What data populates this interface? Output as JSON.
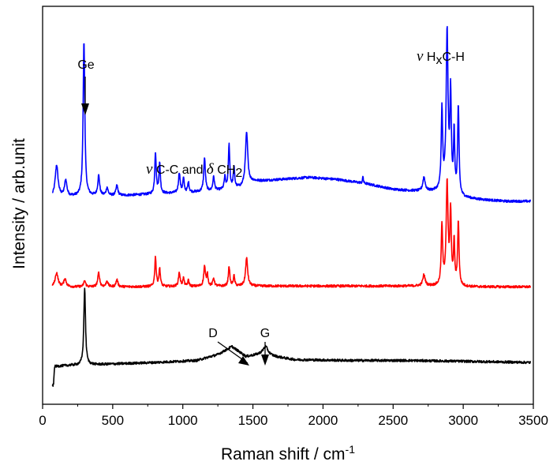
{
  "chart_data": {
    "type": "line",
    "xlabel": "Raman shift / cm",
    "xlabel_sup": "-1",
    "ylabel": "Intensity / arb.unit",
    "xlim": [
      0,
      3500
    ],
    "ylim": [
      0,
      10
    ],
    "x_ticks": [
      0,
      500,
      1000,
      1500,
      2000,
      2500,
      3000,
      3500
    ],
    "x_tick_labels": [
      "0",
      "500",
      "1000",
      "1500",
      "2000",
      "2500",
      "3000",
      "3500"
    ],
    "y_ticks_visible": false,
    "grid": false,
    "legend": "none",
    "series": [
      {
        "color": "#0000ff",
        "baseline_points": [
          [
            80,
            5.2
          ],
          [
            200,
            5.22
          ],
          [
            600,
            5.25
          ],
          [
            900,
            5.3
          ],
          [
            1200,
            5.35
          ],
          [
            1420,
            5.45
          ],
          [
            1500,
            5.6
          ],
          [
            1700,
            5.65
          ],
          [
            1900,
            5.7
          ],
          [
            2100,
            5.65
          ],
          [
            2300,
            5.55
          ],
          [
            2500,
            5.4
          ],
          [
            2700,
            5.35
          ],
          [
            2850,
            5.35
          ],
          [
            2980,
            5.2
          ],
          [
            3100,
            5.15
          ],
          [
            3300,
            5.1
          ],
          [
            3480,
            5.1
          ]
        ],
        "peaks": [
          [
            100,
            0.8,
            12
          ],
          [
            165,
            0.4,
            10
          ],
          [
            295,
            3.9,
            7
          ],
          [
            400,
            0.5,
            8
          ],
          [
            460,
            0.2,
            8
          ],
          [
            530,
            0.25,
            8
          ],
          [
            805,
            1.05,
            6
          ],
          [
            835,
            0.75,
            6
          ],
          [
            975,
            0.5,
            7
          ],
          [
            1005,
            0.35,
            6
          ],
          [
            1040,
            0.25,
            6
          ],
          [
            1155,
            0.85,
            7
          ],
          [
            1220,
            0.35,
            7
          ],
          [
            1300,
            0.3,
            6
          ],
          [
            1330,
            1.1,
            6
          ],
          [
            1365,
            0.5,
            6
          ],
          [
            1455,
            1.3,
            10
          ],
          [
            2285,
            0.18,
            3
          ],
          [
            2720,
            0.35,
            10
          ],
          [
            2848,
            2.0,
            6
          ],
          [
            2885,
            4.0,
            8
          ],
          [
            2910,
            2.4,
            6
          ],
          [
            2935,
            1.5,
            5
          ],
          [
            2965,
            2.2,
            6
          ]
        ],
        "start_x": 70
      },
      {
        "color": "#ff0000",
        "baseline_points": [
          [
            80,
            2.95
          ],
          [
            500,
            2.95
          ],
          [
            1500,
            2.97
          ],
          [
            2500,
            2.97
          ],
          [
            2850,
            2.97
          ],
          [
            3000,
            2.95
          ],
          [
            3480,
            2.95
          ]
        ],
        "peaks": [
          [
            100,
            0.35,
            12
          ],
          [
            160,
            0.2,
            10
          ],
          [
            300,
            0.15,
            8
          ],
          [
            400,
            0.35,
            8
          ],
          [
            460,
            0.15,
            8
          ],
          [
            530,
            0.18,
            8
          ],
          [
            805,
            0.75,
            6
          ],
          [
            835,
            0.45,
            6
          ],
          [
            975,
            0.35,
            7
          ],
          [
            1005,
            0.2,
            6
          ],
          [
            1040,
            0.15,
            6
          ],
          [
            1155,
            0.5,
            7
          ],
          [
            1175,
            0.3,
            6
          ],
          [
            1220,
            0.2,
            7
          ],
          [
            1330,
            0.5,
            6
          ],
          [
            1365,
            0.25,
            6
          ],
          [
            1455,
            0.7,
            9
          ],
          [
            2720,
            0.28,
            10
          ],
          [
            2848,
            1.5,
            6
          ],
          [
            2885,
            2.55,
            8
          ],
          [
            2910,
            1.8,
            6
          ],
          [
            2935,
            1.1,
            5
          ],
          [
            2965,
            1.6,
            6
          ]
        ],
        "start_x": 70
      },
      {
        "color": "#000000",
        "baseline_points": [
          [
            70,
            0.45
          ],
          [
            78,
            0.5
          ],
          [
            85,
            0.95
          ],
          [
            200,
            0.98
          ],
          [
            400,
            1.0
          ],
          [
            800,
            1.05
          ],
          [
            1100,
            1.1
          ],
          [
            1250,
            1.25
          ],
          [
            1350,
            1.45
          ],
          [
            1450,
            1.2
          ],
          [
            1550,
            1.25
          ],
          [
            1650,
            1.2
          ],
          [
            1800,
            1.12
          ],
          [
            2200,
            1.1
          ],
          [
            2600,
            1.1
          ],
          [
            3000,
            1.08
          ],
          [
            3480,
            1.05
          ]
        ],
        "peaks": [
          [
            300,
            1.95,
            7
          ],
          [
            1590,
            0.22,
            22
          ]
        ],
        "start_x": 70
      }
    ],
    "annotations": [
      {
        "text": "Ge",
        "arrow_to": [
          298,
          7.3
        ]
      },
      {
        "text_prefix": "ν",
        "text": " C-C and ",
        "text_mid": "δ",
        "text_suffix": " CH",
        "text_sub": "2"
      },
      {
        "text_prefix": "ν",
        "text": " H",
        "text_sub": "x",
        "text_suffix": "C-H"
      },
      {
        "text": "D",
        "arrow_to": [
          1330,
          1.4
        ]
      },
      {
        "text": "G",
        "arrow_to": [
          1585,
          1.3
        ]
      }
    ]
  }
}
